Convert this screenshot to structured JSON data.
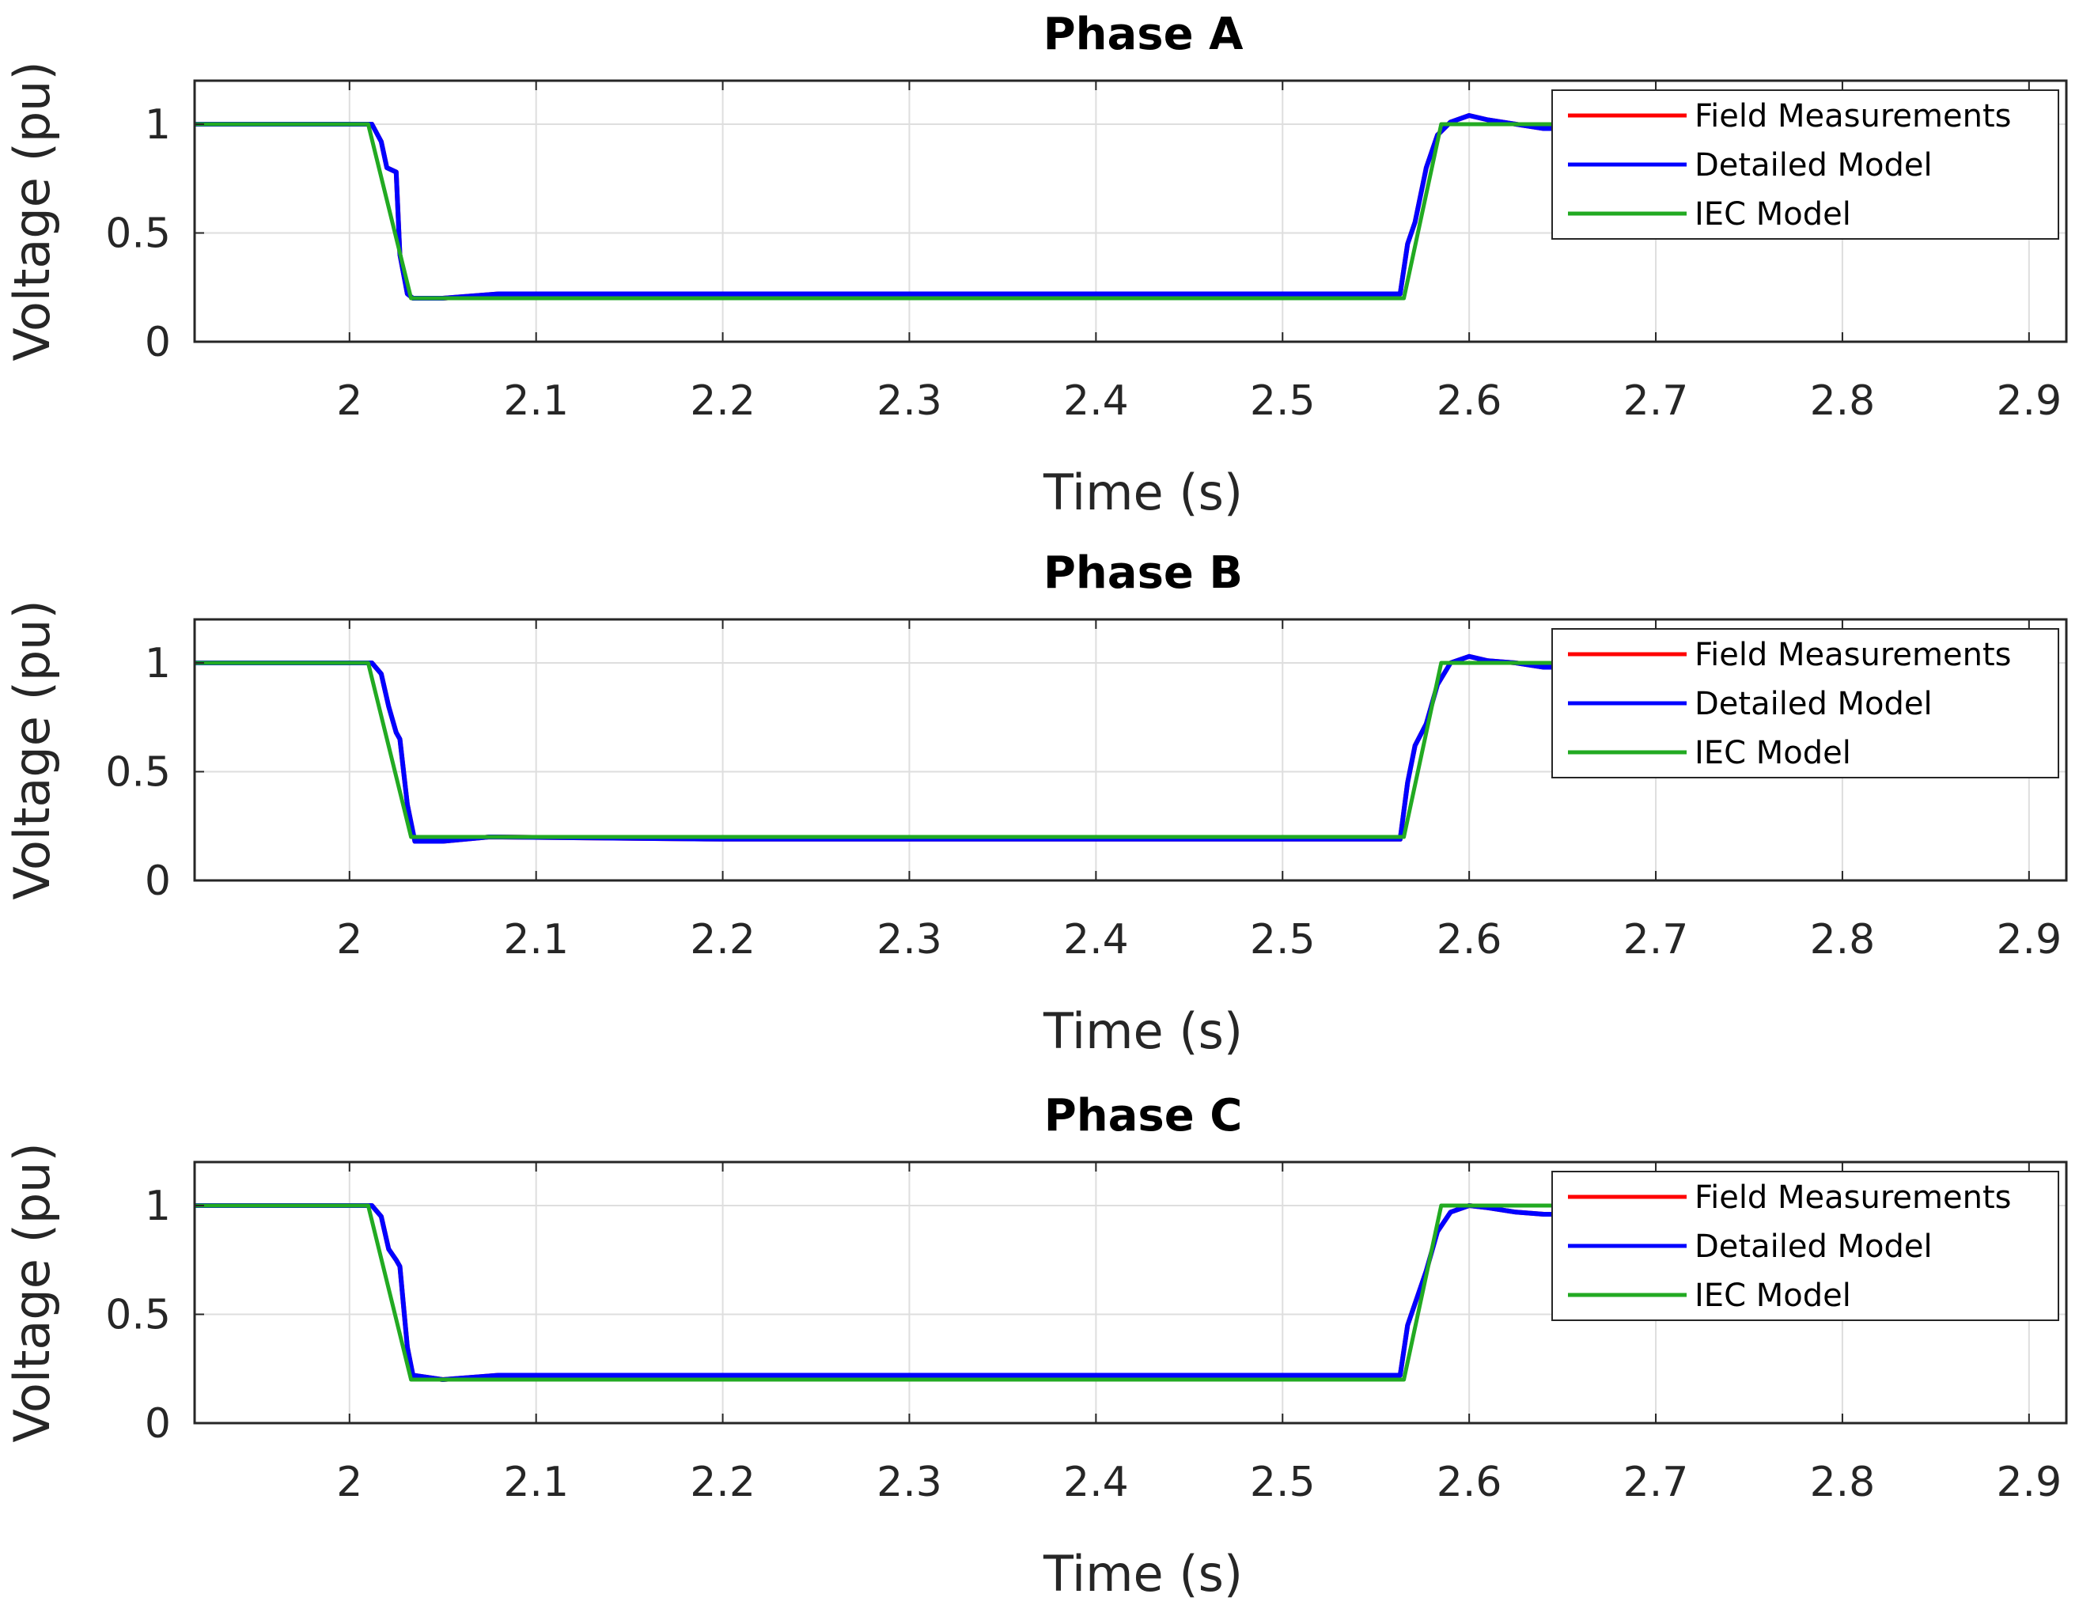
{
  "chart_data": [
    {
      "type": "line",
      "title": "Phase A",
      "xlabel": "Time (s)",
      "ylabel": "Voltage (pu)",
      "xlim": [
        1.917,
        2.92
      ],
      "ylim": [
        0,
        1.2
      ],
      "xticks": [
        2,
        2.1,
        2.2,
        2.3,
        2.4,
        2.5,
        2.6,
        2.7,
        2.8,
        2.9
      ],
      "xtick_labels": [
        "2",
        "2.1",
        "2.2",
        "2.3",
        "2.4",
        "2.5",
        "2.6",
        "2.7",
        "2.8",
        "2.9"
      ],
      "yticks": [
        0,
        0.5,
        1
      ],
      "ytick_labels": [
        "0",
        "0.5",
        "1"
      ],
      "grid": true,
      "legend": "top-right",
      "series": [
        {
          "name": "Field Measurements",
          "color": "#ff0000",
          "x": [
            1.917,
            2.012,
            2.017,
            2.02,
            2.025,
            2.027,
            2.031,
            2.034,
            2.05,
            2.08,
            2.2,
            2.4,
            2.563,
            2.567,
            2.571,
            2.577,
            2.583,
            2.59,
            2.6,
            2.61,
            2.625,
            2.64,
            2.645
          ],
          "y": [
            1.0,
            1.0,
            0.92,
            0.8,
            0.78,
            0.4,
            0.22,
            0.2,
            0.2,
            0.22,
            0.22,
            0.22,
            0.22,
            0.45,
            0.55,
            0.8,
            0.95,
            1.01,
            1.04,
            1.02,
            1.0,
            0.98,
            0.98
          ]
        },
        {
          "name": "Detailed Model",
          "color": "#0000ff",
          "x": [
            1.917,
            2.012,
            2.017,
            2.02,
            2.025,
            2.027,
            2.031,
            2.034,
            2.05,
            2.08,
            2.2,
            2.4,
            2.563,
            2.567,
            2.571,
            2.577,
            2.583,
            2.59,
            2.6,
            2.61,
            2.625,
            2.64,
            2.645
          ],
          "y": [
            1.0,
            1.0,
            0.92,
            0.8,
            0.78,
            0.4,
            0.22,
            0.2,
            0.2,
            0.22,
            0.22,
            0.22,
            0.22,
            0.45,
            0.55,
            0.8,
            0.95,
            1.01,
            1.04,
            1.02,
            1.0,
            0.98,
            0.98
          ]
        },
        {
          "name": "IEC Model",
          "color": "#22aa22",
          "x": [
            1.917,
            2.01,
            2.033,
            2.565,
            2.585,
            2.645
          ],
          "y": [
            1.0,
            1.0,
            0.2,
            0.2,
            1.0,
            1.0
          ]
        }
      ]
    },
    {
      "type": "line",
      "title": "Phase B",
      "xlabel": "Time (s)",
      "ylabel": "Voltage (pu)",
      "xlim": [
        1.917,
        2.92
      ],
      "ylim": [
        0,
        1.2
      ],
      "xticks": [
        2,
        2.1,
        2.2,
        2.3,
        2.4,
        2.5,
        2.6,
        2.7,
        2.8,
        2.9
      ],
      "xtick_labels": [
        "2",
        "2.1",
        "2.2",
        "2.3",
        "2.4",
        "2.5",
        "2.6",
        "2.7",
        "2.8",
        "2.9"
      ],
      "yticks": [
        0,
        0.5,
        1
      ],
      "ytick_labels": [
        "0",
        "0.5",
        "1"
      ],
      "grid": true,
      "legend": "top-right",
      "series": [
        {
          "name": "Field Measurements",
          "color": "#ff0000",
          "x": [
            1.917,
            2.012,
            2.017,
            2.021,
            2.025,
            2.027,
            2.031,
            2.035,
            2.05,
            2.075,
            2.2,
            2.4,
            2.563,
            2.567,
            2.571,
            2.577,
            2.583,
            2.59,
            2.6,
            2.61,
            2.625,
            2.64,
            2.645
          ],
          "y": [
            1.0,
            1.0,
            0.95,
            0.8,
            0.68,
            0.65,
            0.35,
            0.18,
            0.18,
            0.2,
            0.19,
            0.19,
            0.19,
            0.45,
            0.62,
            0.72,
            0.9,
            1.0,
            1.03,
            1.01,
            1.0,
            0.98,
            0.98
          ]
        },
        {
          "name": "Detailed Model",
          "color": "#0000ff",
          "x": [
            1.917,
            2.012,
            2.017,
            2.021,
            2.025,
            2.027,
            2.031,
            2.035,
            2.05,
            2.075,
            2.2,
            2.4,
            2.563,
            2.567,
            2.571,
            2.577,
            2.583,
            2.59,
            2.6,
            2.61,
            2.625,
            2.64,
            2.645
          ],
          "y": [
            1.0,
            1.0,
            0.95,
            0.8,
            0.68,
            0.65,
            0.35,
            0.18,
            0.18,
            0.2,
            0.19,
            0.19,
            0.19,
            0.45,
            0.62,
            0.72,
            0.9,
            1.0,
            1.03,
            1.01,
            1.0,
            0.98,
            0.98
          ]
        },
        {
          "name": "IEC Model",
          "color": "#22aa22",
          "x": [
            1.917,
            2.01,
            2.033,
            2.565,
            2.585,
            2.645
          ],
          "y": [
            1.0,
            1.0,
            0.2,
            0.2,
            1.0,
            1.0
          ]
        }
      ]
    },
    {
      "type": "line",
      "title": "Phase C",
      "xlabel": "Time (s)",
      "ylabel": "Voltage (pu)",
      "xlim": [
        1.917,
        2.92
      ],
      "ylim": [
        0,
        1.2
      ],
      "xticks": [
        2,
        2.1,
        2.2,
        2.3,
        2.4,
        2.5,
        2.6,
        2.7,
        2.8,
        2.9
      ],
      "xtick_labels": [
        "2",
        "2.1",
        "2.2",
        "2.3",
        "2.4",
        "2.5",
        "2.6",
        "2.7",
        "2.8",
        "2.9"
      ],
      "yticks": [
        0,
        0.5,
        1
      ],
      "ytick_labels": [
        "0",
        "0.5",
        "1"
      ],
      "grid": true,
      "legend": "top-right",
      "series": [
        {
          "name": "Field Measurements",
          "color": "#ff0000",
          "x": [
            1.917,
            2.012,
            2.017,
            2.021,
            2.025,
            2.027,
            2.031,
            2.034,
            2.05,
            2.08,
            2.2,
            2.4,
            2.563,
            2.567,
            2.571,
            2.577,
            2.583,
            2.59,
            2.6,
            2.61,
            2.625,
            2.64,
            2.645
          ],
          "y": [
            1.0,
            1.0,
            0.95,
            0.8,
            0.75,
            0.72,
            0.35,
            0.22,
            0.2,
            0.22,
            0.22,
            0.22,
            0.22,
            0.45,
            0.55,
            0.7,
            0.88,
            0.97,
            1.0,
            0.99,
            0.97,
            0.96,
            0.96
          ]
        },
        {
          "name": "Detailed Model",
          "color": "#0000ff",
          "x": [
            1.917,
            2.012,
            2.017,
            2.021,
            2.025,
            2.027,
            2.031,
            2.034,
            2.05,
            2.08,
            2.2,
            2.4,
            2.563,
            2.567,
            2.571,
            2.577,
            2.583,
            2.59,
            2.6,
            2.61,
            2.625,
            2.64,
            2.645
          ],
          "y": [
            1.0,
            1.0,
            0.95,
            0.8,
            0.75,
            0.72,
            0.35,
            0.22,
            0.2,
            0.22,
            0.22,
            0.22,
            0.22,
            0.45,
            0.55,
            0.7,
            0.88,
            0.97,
            1.0,
            0.99,
            0.97,
            0.96,
            0.96
          ]
        },
        {
          "name": "IEC Model",
          "color": "#22aa22",
          "x": [
            1.917,
            2.01,
            2.033,
            2.565,
            2.585,
            2.645
          ],
          "y": [
            1.0,
            1.0,
            0.2,
            0.2,
            1.0,
            1.0
          ]
        }
      ]
    }
  ]
}
